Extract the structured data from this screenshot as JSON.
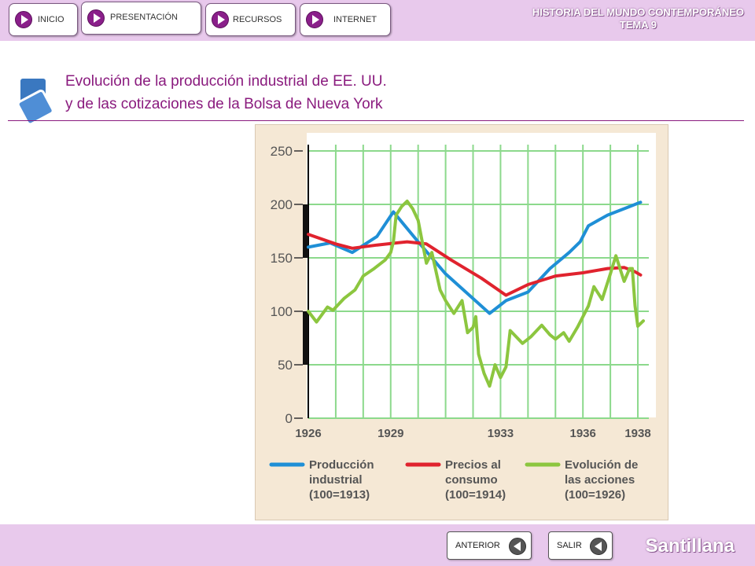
{
  "nav": {
    "inicio": "INICIO",
    "presentacion": "PRESENTACIÓN",
    "recursos": "RECURSOS",
    "internet": "INTERNET"
  },
  "header": {
    "line1": "HISTORIA DEL MUNDO CONTEMPORÁNEO",
    "line2": "TEMA 9"
  },
  "slide": {
    "title_line1": "Evolución de la producción industrial de EE. UU.",
    "title_line2": "y de las cotizaciones de la Bolsa de Nueva York"
  },
  "footer": {
    "anterior": "ANTERIOR",
    "salir": "SALIR",
    "logo": "Santillana"
  },
  "colors": {
    "accent": "#8a1b7e",
    "bar": "#e8c9ec",
    "produccion": "#1f8fd6",
    "precios": "#e0232e",
    "acciones": "#8cc63f",
    "grid": "#8cd98c",
    "plot_bg": "#ffffff"
  },
  "chart_data": {
    "type": "line",
    "xlim": [
      1926,
      1938.4
    ],
    "ylim": [
      0,
      250
    ],
    "y_ticks": [
      0,
      50,
      100,
      150,
      200,
      250
    ],
    "x_tick_labels": [
      "1926",
      "1929",
      "1933",
      "1936",
      "1938"
    ],
    "x_tick_values": [
      1926,
      1929,
      1933,
      1936,
      1938
    ],
    "grid": true,
    "legend_position": "bottom",
    "series": [
      {
        "key": "produccion",
        "legend_lines": [
          "Producción",
          "industrial",
          "(100=1913)"
        ],
        "color": "#1f8fd6",
        "x": [
          1926,
          1926.8,
          1927.6,
          1928.5,
          1929.1,
          1930,
          1931,
          1932.6,
          1933.2,
          1934,
          1934.8,
          1935.5,
          1935.9,
          1936.2,
          1936.9,
          1937.6,
          1938.1
        ],
        "y": [
          160,
          164,
          155,
          170,
          193,
          165,
          135,
          98,
          110,
          118,
          140,
          155,
          165,
          180,
          190,
          197,
          202
        ]
      },
      {
        "key": "precios",
        "legend_lines": [
          "Precios al",
          "consumo",
          "(100=1914)"
        ],
        "color": "#e0232e",
        "x": [
          1926,
          1927,
          1927.6,
          1928.5,
          1929.6,
          1930.3,
          1931.2,
          1932.3,
          1933.2,
          1934,
          1935,
          1936,
          1936.9,
          1937.5,
          1937.9,
          1938.1
        ],
        "y": [
          172,
          163,
          159,
          162,
          165,
          163,
          148,
          131,
          115,
          125,
          133,
          136,
          140,
          141,
          137,
          134
        ]
      },
      {
        "key": "acciones",
        "legend_lines": [
          "Evolución de",
          "las acciones",
          "(100=1926)"
        ],
        "color": "#8cc63f",
        "x": [
          1926,
          1926.3,
          1926.7,
          1926.9,
          1927.3,
          1927.7,
          1928,
          1928.4,
          1928.8,
          1929,
          1929.1,
          1929.2,
          1929.4,
          1929.6,
          1929.8,
          1930,
          1930.15,
          1930.3,
          1930.5,
          1930.8,
          1931,
          1931.3,
          1931.6,
          1931.8,
          1932,
          1932.1,
          1932.2,
          1932.4,
          1932.6,
          1932.8,
          1933,
          1933.2,
          1933.35,
          1933.5,
          1933.8,
          1934.1,
          1934.5,
          1934.8,
          1935,
          1935.3,
          1935.5,
          1935.8,
          1936,
          1936.2,
          1936.4,
          1936.7,
          1937,
          1937.2,
          1937.5,
          1937.7,
          1937.8,
          1937.9,
          1938,
          1938.2
        ],
        "y": [
          100,
          90,
          104,
          101,
          112,
          120,
          133,
          140,
          148,
          155,
          165,
          190,
          198,
          203,
          196,
          185,
          165,
          145,
          155,
          120,
          110,
          98,
          110,
          80,
          85,
          95,
          60,
          42,
          30,
          50,
          38,
          48,
          82,
          78,
          70,
          76,
          87,
          78,
          74,
          80,
          72,
          85,
          95,
          105,
          123,
          111,
          135,
          152,
          128,
          140,
          140,
          105,
          86,
          91
        ]
      }
    ]
  }
}
